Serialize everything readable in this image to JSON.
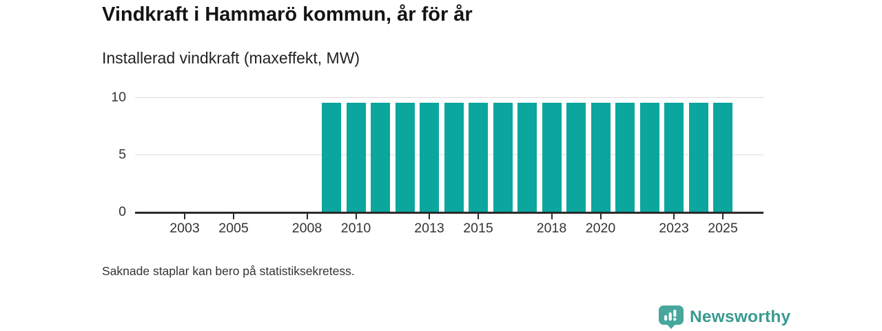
{
  "header": {
    "title": "Vindkraft i Hammarö kommun, år för år",
    "subtitle": "Installerad vindkraft (maxeffekt, MW)"
  },
  "chart_data": {
    "type": "bar",
    "title": "Vindkraft i Hammarö kommun, år för år",
    "subtitle": "Installerad vindkraft (maxeffekt, MW)",
    "unit": "MW",
    "categories": [
      2001,
      2002,
      2003,
      2004,
      2005,
      2006,
      2007,
      2008,
      2009,
      2010,
      2011,
      2012,
      2013,
      2014,
      2015,
      2016,
      2017,
      2018,
      2019,
      2020,
      2021,
      2022,
      2023,
      2024,
      2025
    ],
    "values": [
      null,
      null,
      null,
      null,
      null,
      null,
      null,
      null,
      9.5,
      9.5,
      9.5,
      9.5,
      9.5,
      9.5,
      9.5,
      9.5,
      9.5,
      9.5,
      9.5,
      9.5,
      9.5,
      9.5,
      9.5,
      9.5,
      9.5
    ],
    "xtick_labels": [
      "2003",
      "2005",
      "2008",
      "2010",
      "2013",
      "2015",
      "2018",
      "2020",
      "2023",
      "2025"
    ],
    "yticks": [
      0,
      5,
      10
    ],
    "ylim": [
      0,
      10
    ],
    "grid": "horizontal",
    "legend": "none",
    "bar_color": "#0ba69d"
  },
  "footnote": "Saknade staplar kan bero på statistiksekretess.",
  "brand": {
    "name": "Newsworthy",
    "icon": "bar-chart-speech-bubble-icon",
    "icon_color": "#47a79c",
    "text_color": "#399b90"
  }
}
